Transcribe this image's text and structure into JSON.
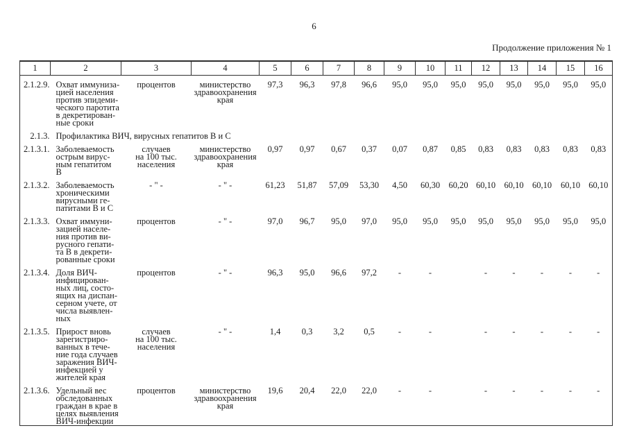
{
  "page": {
    "number": "6",
    "continuation": "Продолжение приложения № 1"
  },
  "table": {
    "header_cols": [
      "1",
      "2",
      "3",
      "4",
      "5",
      "6",
      "7",
      "8",
      "9",
      "10",
      "11",
      "12",
      "13",
      "14",
      "15",
      "16"
    ],
    "rows": [
      {
        "type": "data",
        "index": "2.1.2.9.",
        "name": [
          "Охват иммуниза-",
          "цией населения",
          "против эпидеми-",
          "ческого паротита",
          "в декретирован-",
          "ные сроки"
        ],
        "unit": [
          "процентов"
        ],
        "source": [
          "министерство",
          "здравоохранения",
          "края"
        ],
        "values": [
          "97,3",
          "96,3",
          "97,8",
          "96,6",
          "95,0",
          "95,0",
          "95,0",
          "95,0",
          "95,0",
          "95,0",
          "95,0",
          "95,0"
        ]
      },
      {
        "type": "section",
        "index": "2.1.3.",
        "title": "Профилактика ВИЧ, вирусных гепатитов В и С"
      },
      {
        "type": "data",
        "index": "2.1.3.1.",
        "name": [
          "Заболеваемость",
          "острым вирус-",
          "ным гепатитом",
          "В"
        ],
        "unit": [
          "случаев",
          "на 100 тыс.",
          "населения"
        ],
        "source": [
          "министерство",
          "здравоохранения",
          "края"
        ],
        "values": [
          "0,97",
          "0,97",
          "0,67",
          "0,37",
          "0,07",
          "0,87",
          "0,85",
          "0,83",
          "0,83",
          "0,83",
          "0,83",
          "0,83"
        ]
      },
      {
        "type": "data",
        "index": "2.1.3.2.",
        "name": [
          "Заболеваемость",
          "хроническими",
          "вирусными ге-",
          "патитами В и С"
        ],
        "unit": [
          "- \" -"
        ],
        "source": [
          "- \" -"
        ],
        "values": [
          "61,23",
          "51,87",
          "57,09",
          "53,30",
          "4,50",
          "60,30",
          "60,20",
          "60,10",
          "60,10",
          "60,10",
          "60,10",
          "60,10"
        ]
      },
      {
        "type": "data",
        "index": "2.1.3.3.",
        "name": [
          "Охват иммуни-",
          "зацией населе-",
          "ния против ви-",
          "русного гепати-",
          "та В в декрети-",
          "рованные сроки"
        ],
        "unit": [
          "процентов"
        ],
        "source": [
          "- \" -"
        ],
        "values": [
          "97,0",
          "96,7",
          "95,0",
          "97,0",
          "95,0",
          "95,0",
          "95,0",
          "95,0",
          "95,0",
          "95,0",
          "95,0",
          "95,0"
        ]
      },
      {
        "type": "data",
        "index": "2.1.3.4.",
        "name": [
          "Доля ВИЧ-",
          "инфицирован-",
          "ных лиц, состо-",
          "ящих на диспан-",
          "серном учете, от",
          "числа выявлен-",
          "ных"
        ],
        "unit": [
          "процентов"
        ],
        "source": [
          "- \" -"
        ],
        "values": [
          "96,3",
          "95,0",
          "96,6",
          "97,2",
          "-",
          "-",
          "",
          "-",
          "-",
          "-",
          "-",
          "-"
        ]
      },
      {
        "type": "data",
        "index": "2.1.3.5.",
        "name": [
          "Прирост вновь",
          "зарегистриро-",
          "ванных в тече-",
          "ние года случаев",
          "заражения ВИЧ-",
          "инфекцией у",
          "жителей края"
        ],
        "unit": [
          "случаев",
          "на 100 тыс.",
          "населения"
        ],
        "source": [
          "- \" -"
        ],
        "values": [
          "1,4",
          "0,3",
          "3,2",
          "0,5",
          "-",
          "-",
          "",
          "-",
          "-",
          "-",
          "-",
          "-"
        ]
      },
      {
        "type": "data",
        "index": "2.1.3.6.",
        "name": [
          "Удельный вес",
          "обследованных",
          "граждан в крае в",
          "целях выявления",
          "ВИЧ-инфекции"
        ],
        "unit": [
          "процентов"
        ],
        "source": [
          "министерство",
          "здравоохранения",
          "края"
        ],
        "values": [
          "19,6",
          "20,4",
          "22,0",
          "22,0",
          "-",
          "-",
          "",
          "-",
          "-",
          "-",
          "-",
          "-"
        ]
      }
    ]
  }
}
